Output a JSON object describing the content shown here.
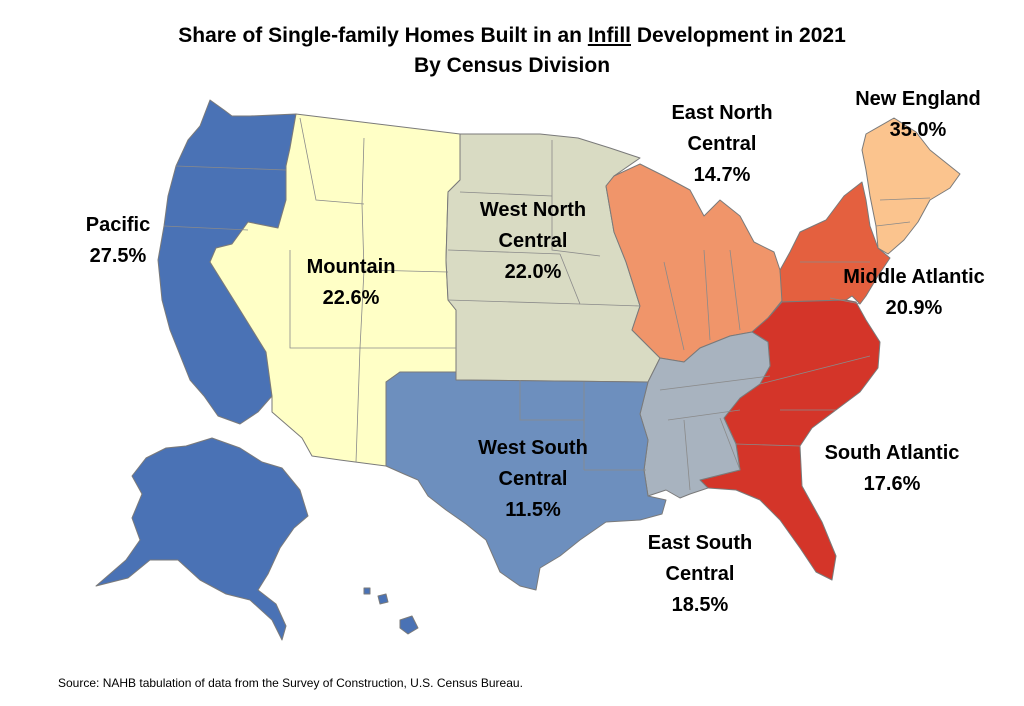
{
  "title": {
    "line1_pre": "Share of Single-family Homes Built in an ",
    "line1_underlined": "Infill",
    "line1_post": " Development in 2021",
    "line2": "By Census Division"
  },
  "divisions": {
    "pacific": {
      "name": "Pacific",
      "value": "27.5%",
      "color": "#4a72b5"
    },
    "mountain": {
      "name": "Mountain",
      "value": "22.6%",
      "color": "#ffffc6"
    },
    "west_north_central": {
      "name": "West North Central",
      "name_lines": [
        "West North",
        "Central"
      ],
      "value": "22.0%",
      "color": "#d9dbc3"
    },
    "east_north_central": {
      "name": "East North Central",
      "name_lines": [
        "East North",
        "Central"
      ],
      "value": "14.7%",
      "color": "#f0956a"
    },
    "new_england": {
      "name": "New England",
      "value": "35.0%",
      "color": "#fbc48e"
    },
    "middle_atlantic": {
      "name": "Middle Atlantic",
      "value": "20.9%",
      "color": "#e4603f"
    },
    "south_atlantic": {
      "name": "South Atlantic",
      "value": "17.6%",
      "color": "#d43529"
    },
    "east_south_central": {
      "name": "East South Central",
      "name_lines": [
        "East South",
        "Central"
      ],
      "value": "18.5%",
      "color": "#a8b3bf"
    },
    "west_south_central": {
      "name": "West South Central",
      "name_lines": [
        "West South",
        "Central"
      ],
      "value": "11.5%",
      "color": "#6d8fbe"
    }
  },
  "source": "Source: NAHB tabulation of data from the Survey of Construction, U.S. Census Bureau."
}
